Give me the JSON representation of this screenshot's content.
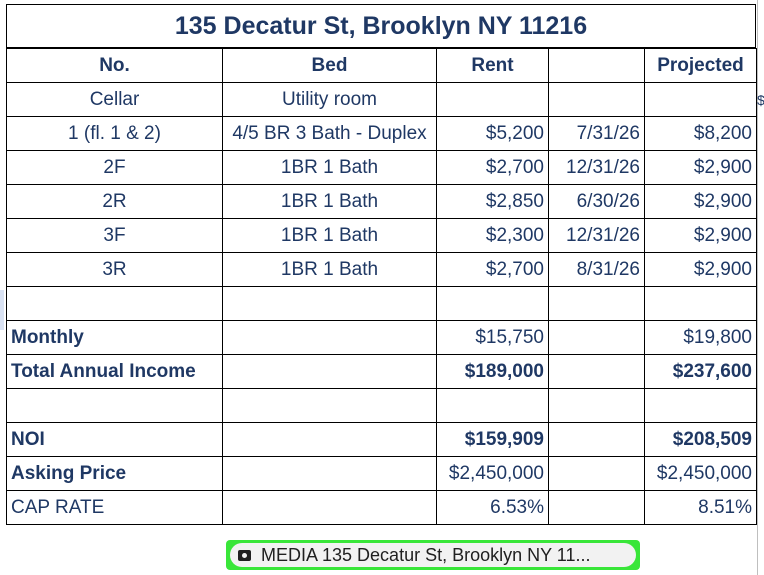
{
  "title": "135 Decatur St, Brooklyn NY 11216",
  "headers": {
    "no": "No.",
    "bed": "Bed",
    "rent": "Rent",
    "date": "",
    "projected": "Projected"
  },
  "units": [
    {
      "no": "Cellar",
      "bed": "Utility room",
      "rent": "",
      "date": "",
      "projected": ""
    },
    {
      "no": "1 (fl. 1 & 2)",
      "bed": "4/5 BR 3 Bath - Duplex",
      "rent": "$5,200",
      "date": "7/31/26",
      "projected": "$8,200"
    },
    {
      "no": "2F",
      "bed": "1BR 1 Bath",
      "rent": "$2,700",
      "date": "12/31/26",
      "projected": "$2,900"
    },
    {
      "no": "2R",
      "bed": "1BR 1 Bath",
      "rent": "$2,850",
      "date": "6/30/26",
      "projected": "$2,900"
    },
    {
      "no": "3F",
      "bed": "1BR 1 Bath",
      "rent": "$2,300",
      "date": "12/31/26",
      "projected": "$2,900"
    },
    {
      "no": "3R",
      "bed": "1BR 1 Bath",
      "rent": "$2,700",
      "date": "8/31/26",
      "projected": "$2,900"
    }
  ],
  "summary": {
    "monthly": {
      "label": "Monthly",
      "rent": "$15,750",
      "projected": "$19,800"
    },
    "annual": {
      "label": "Total Annual Income",
      "rent": "$189,000",
      "projected": "$237,600"
    },
    "noi": {
      "label": "NOI",
      "rent": "$159,909",
      "projected": "$208,509"
    },
    "asking": {
      "label": "Asking Price",
      "rent": "$2,450,000",
      "projected": "$2,450,000"
    },
    "cap": {
      "label": "CAP RATE",
      "rent": "6.53%",
      "projected": "8.51%"
    }
  },
  "media_chip": {
    "label": "MEDIA 135 Decatur St, Brooklyn NY 11...",
    "icon": "camera-folder-icon"
  },
  "colors": {
    "text": "#1f3864",
    "chip_border": "#39e639"
  }
}
